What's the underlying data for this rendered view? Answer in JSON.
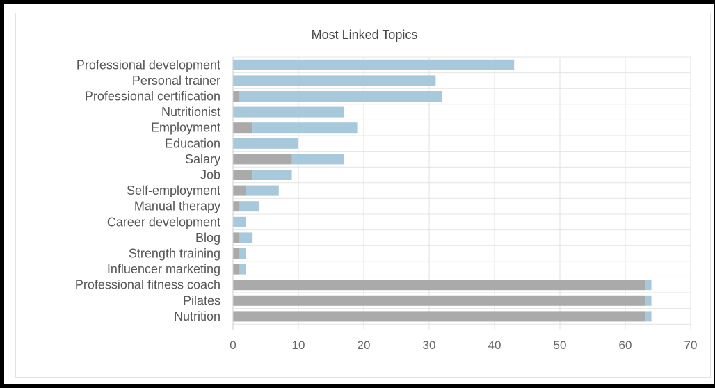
{
  "chart_data": {
    "type": "bar",
    "orientation": "horizontal",
    "stacked": true,
    "title": "Most Linked Topics",
    "categories": [
      "Professional development",
      "Personal trainer",
      "Professional certification",
      "Nutritionist",
      "Employment",
      "Education",
      "Salary",
      "Job",
      "Self-employment",
      "Manual therapy",
      "Career development",
      "Blog",
      "Strength training",
      "Influencer marketing",
      "Professional fitness coach",
      "Pilates",
      "Nutrition"
    ],
    "series": [
      {
        "color": "#aaaaaa",
        "values": [
          0,
          0,
          1,
          0,
          3,
          0,
          9,
          3,
          2,
          1,
          0,
          1,
          1,
          1,
          63,
          63,
          63
        ]
      },
      {
        "color": "#a8c8db",
        "values": [
          43,
          31,
          31,
          17,
          16,
          10,
          8,
          6,
          5,
          3,
          2,
          2,
          1,
          1,
          1,
          1,
          1
        ]
      }
    ],
    "xlim": [
      0,
      70
    ],
    "xticks": [
      0,
      10,
      20,
      30,
      40,
      50,
      60,
      70
    ],
    "grid": true,
    "legend": "none"
  }
}
